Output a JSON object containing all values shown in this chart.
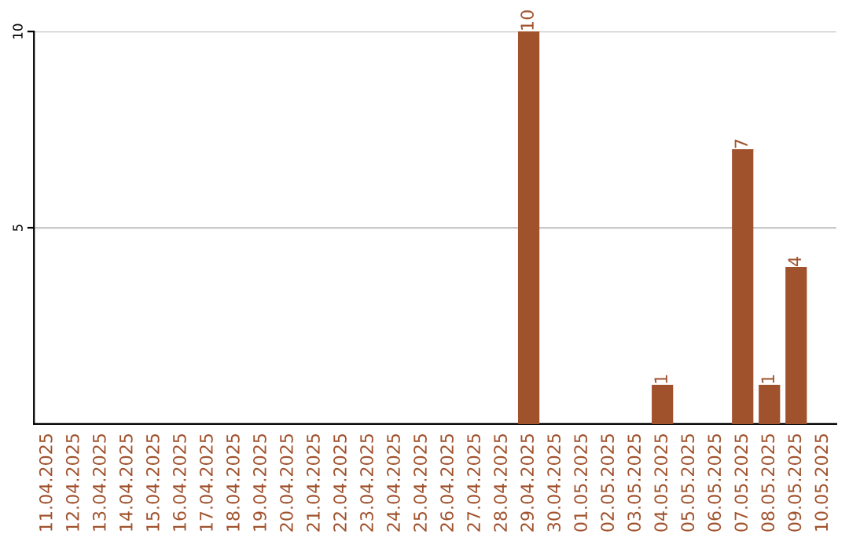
{
  "chart_data": {
    "type": "bar",
    "categories": [
      "11.04.2025",
      "12.04.2025",
      "13.04.2025",
      "14.04.2025",
      "15.04.2025",
      "16.04.2025",
      "17.04.2025",
      "18.04.2025",
      "19.04.2025",
      "20.04.2025",
      "21.04.2025",
      "22.04.2025",
      "23.04.2025",
      "24.04.2025",
      "25.04.2025",
      "26.04.2025",
      "27.04.2025",
      "28.04.2025",
      "29.04.2025",
      "30.04.2025",
      "01.05.2025",
      "02.05.2025",
      "03.05.2025",
      "04.05.2025",
      "05.05.2025",
      "06.05.2025",
      "07.05.2025",
      "08.05.2025",
      "09.05.2025",
      "10.05.2025"
    ],
    "values": [
      0,
      0,
      0,
      0,
      0,
      0,
      0,
      0,
      0,
      0,
      0,
      0,
      0,
      0,
      0,
      0,
      0,
      0,
      10,
      0,
      0,
      0,
      0,
      1,
      0,
      0,
      7,
      1,
      4,
      0
    ],
    "value_labels": [
      null,
      null,
      null,
      null,
      null,
      null,
      null,
      null,
      null,
      null,
      null,
      null,
      null,
      null,
      null,
      null,
      null,
      null,
      "10",
      null,
      null,
      null,
      null,
      "1",
      null,
      null,
      "7",
      "1",
      "4",
      null
    ],
    "color": "#a0522d",
    "ylim": [
      0,
      10
    ],
    "yticks": [
      5,
      10
    ],
    "grid": "y"
  }
}
